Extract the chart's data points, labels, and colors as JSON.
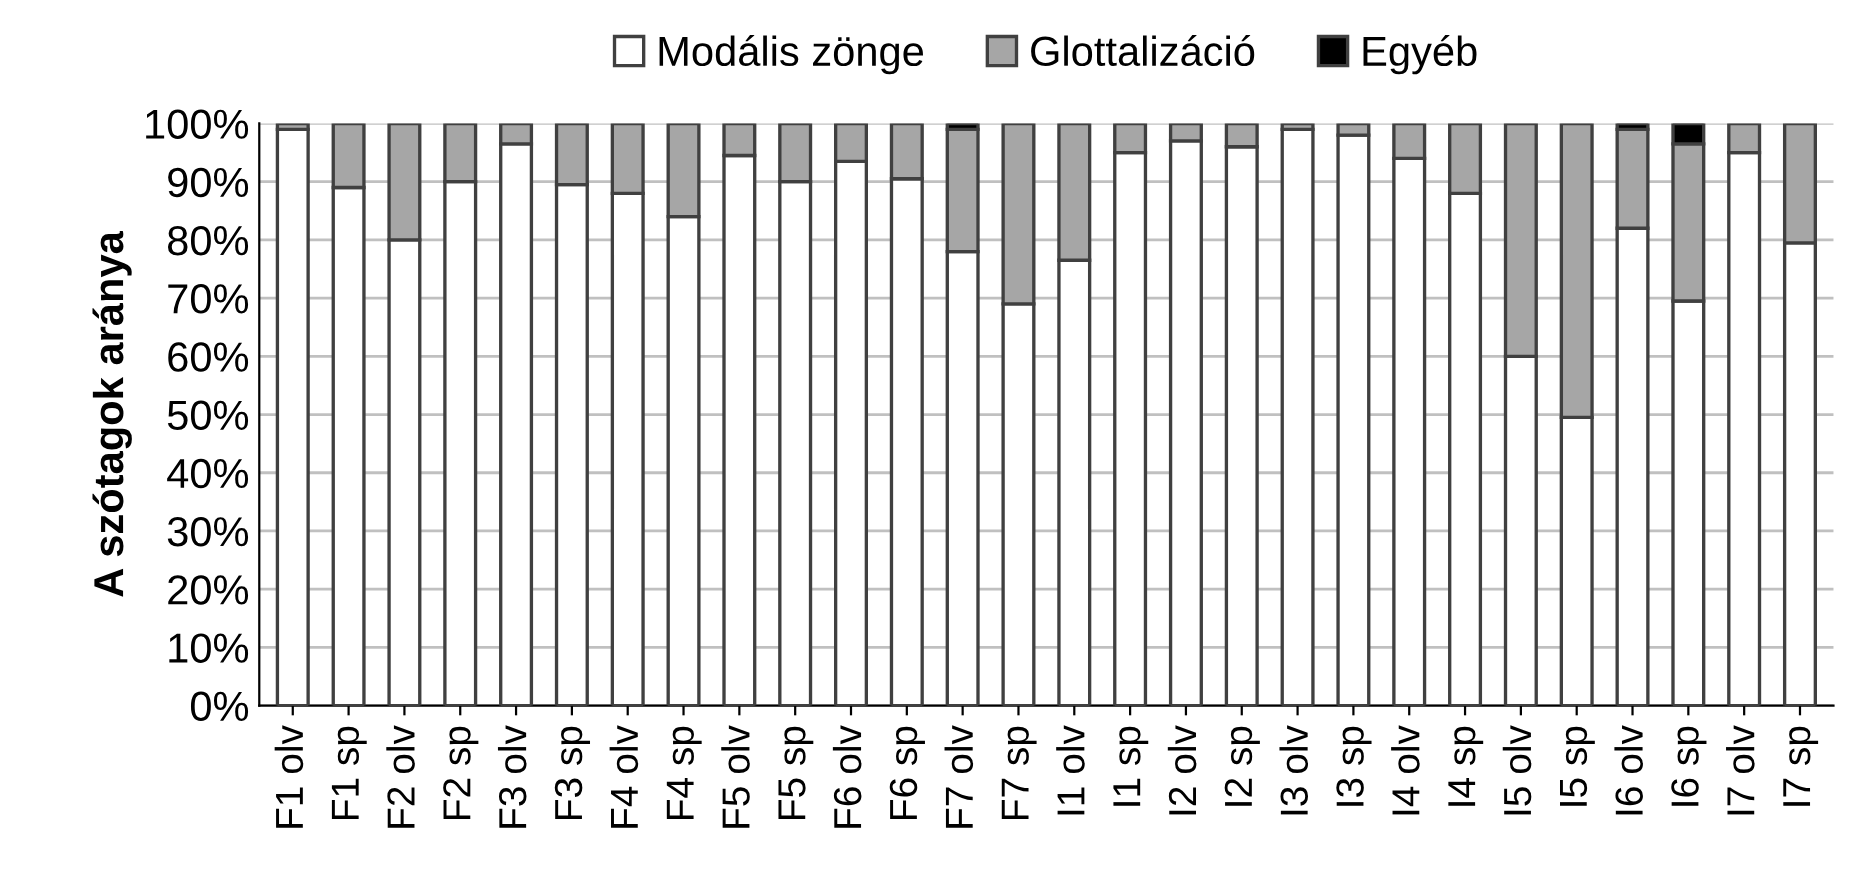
{
  "chart_data": {
    "type": "bar",
    "stacked": true,
    "ylabel": "A szótagok aránya",
    "categories": [
      "F1 olv",
      "F1 sp",
      "F2 olv",
      "F2 sp",
      "F3 olv",
      "F3 sp",
      "F4 olv",
      "F4 sp",
      "F5 olv",
      "F5 sp",
      "F6 olv",
      "F6 sp",
      "F7 olv",
      "F7 sp",
      "I1 olv",
      "I1 sp",
      "I2 olv",
      "I2 sp",
      "I3 olv",
      "I3 sp",
      "I4 olv",
      "I4 sp",
      "I5 olv",
      "I5 sp",
      "I6 olv",
      "I6 sp",
      "I7 olv",
      "I7 sp"
    ],
    "series": [
      {
        "name": "Modális zönge",
        "color": "#ffffff",
        "values": [
          99,
          89,
          80,
          90,
          96.5,
          89.5,
          88,
          84,
          94.5,
          90,
          93.5,
          90.5,
          78,
          69,
          76.5,
          95,
          97,
          96,
          99,
          98,
          94,
          88,
          60,
          49.5,
          82,
          69.5,
          95,
          79.5
        ]
      },
      {
        "name": "Glottalizáció",
        "color": "#a6a6a6",
        "values": [
          1,
          11,
          20,
          10,
          3.5,
          10.5,
          12,
          16,
          5.5,
          10,
          6.5,
          9.5,
          21,
          31,
          23.5,
          5,
          3,
          4,
          1,
          2,
          6,
          12,
          40,
          50.5,
          17,
          27,
          5,
          20.5
        ]
      },
      {
        "name": "Egyéb",
        "color": "#000000",
        "values": [
          null,
          null,
          null,
          null,
          null,
          null,
          null,
          null,
          null,
          null,
          null,
          null,
          1,
          null,
          null,
          null,
          null,
          null,
          null,
          null,
          null,
          null,
          null,
          null,
          1,
          3.5,
          null,
          null
        ]
      }
    ],
    "ylim": [
      0,
      100
    ],
    "yticks": [
      {
        "value": 0,
        "label": "0%"
      },
      {
        "value": 10,
        "label": "10%"
      },
      {
        "value": 20,
        "label": "20%"
      },
      {
        "value": 30,
        "label": "30%"
      },
      {
        "value": 40,
        "label": "40%"
      },
      {
        "value": 50,
        "label": "50%"
      },
      {
        "value": 60,
        "label": "60%"
      },
      {
        "value": 70,
        "label": "70%"
      },
      {
        "value": 80,
        "label": "80%"
      },
      {
        "value": 90,
        "label": "90%"
      },
      {
        "value": 100,
        "label": "100%"
      }
    ],
    "grid": "y",
    "legend": "top"
  }
}
